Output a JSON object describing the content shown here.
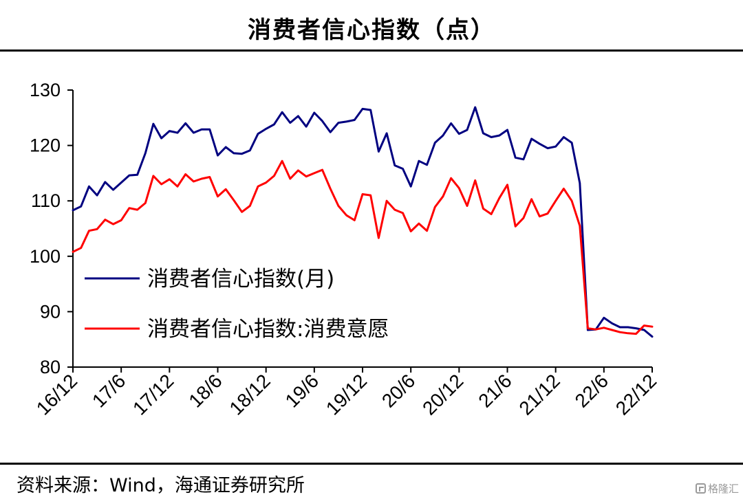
{
  "header": {
    "title": "消费者信心指数（点）"
  },
  "footer": {
    "source": "资料来源：Wind，海通证券研究所",
    "watermark": "格隆汇"
  },
  "chart_data": {
    "type": "line",
    "title": "消费者信心指数（点）",
    "xlabel": "",
    "ylabel": "",
    "ylim": [
      80,
      130
    ],
    "yticks": [
      80,
      90,
      100,
      110,
      120,
      130
    ],
    "xtick_labels": [
      "16/12",
      "17/6",
      "17/12",
      "18/6",
      "18/12",
      "19/6",
      "19/12",
      "20/6",
      "20/12",
      "21/6",
      "21/12",
      "22/6",
      "22/12"
    ],
    "x": [
      "16/12",
      "17/1",
      "17/2",
      "17/3",
      "17/4",
      "17/5",
      "17/6",
      "17/7",
      "17/8",
      "17/9",
      "17/10",
      "17/11",
      "17/12",
      "18/1",
      "18/2",
      "18/3",
      "18/4",
      "18/5",
      "18/6",
      "18/7",
      "18/8",
      "18/9",
      "18/10",
      "18/11",
      "18/12",
      "19/1",
      "19/2",
      "19/3",
      "19/4",
      "19/5",
      "19/6",
      "19/7",
      "19/8",
      "19/9",
      "19/10",
      "19/11",
      "19/12",
      "20/1",
      "20/2",
      "20/3",
      "20/4",
      "20/5",
      "20/6",
      "20/7",
      "20/8",
      "20/9",
      "20/10",
      "20/11",
      "20/12",
      "21/1",
      "21/2",
      "21/3",
      "21/4",
      "21/5",
      "21/6",
      "21/7",
      "21/8",
      "21/9",
      "21/10",
      "21/11",
      "21/12",
      "22/1",
      "22/2",
      "22/3",
      "22/4",
      "22/5",
      "22/6",
      "22/7",
      "22/8",
      "22/9",
      "22/10",
      "22/11",
      "22/12"
    ],
    "grid": false,
    "legend": "left-middle",
    "series": [
      {
        "name": "消费者信心指数(月)",
        "color": "#000080",
        "values": [
          108.3,
          109.0,
          112.6,
          111.0,
          113.4,
          112.0,
          113.3,
          114.6,
          114.7,
          118.6,
          123.9,
          121.3,
          122.6,
          122.3,
          124.0,
          122.3,
          122.9,
          122.9,
          118.2,
          119.7,
          118.6,
          118.5,
          119.1,
          122.1,
          123.0,
          123.8,
          126.0,
          124.1,
          125.3,
          123.4,
          125.9,
          124.4,
          122.4,
          124.1,
          124.3,
          124.6,
          126.6,
          126.4,
          118.9,
          122.2,
          116.4,
          115.8,
          112.6,
          117.2,
          116.5,
          120.5,
          121.8,
          124.0,
          122.1,
          122.8,
          126.9,
          122.2,
          121.5,
          121.8,
          122.8,
          117.8,
          117.5,
          121.2,
          120.3,
          119.5,
          119.8,
          121.5,
          120.5,
          113.2,
          86.7,
          86.8,
          88.9,
          87.9,
          87.2,
          87.2,
          87.0,
          86.7,
          85.5
        ]
      },
      {
        "name": "消费者信心指数:消费意愿",
        "color": "#ff0000",
        "values": [
          100.8,
          101.5,
          104.6,
          104.9,
          106.6,
          105.8,
          106.5,
          108.7,
          108.4,
          109.6,
          114.5,
          113.0,
          113.9,
          112.6,
          114.8,
          113.5,
          114.0,
          114.3,
          110.8,
          112.1,
          110.1,
          108.0,
          109.1,
          112.6,
          113.3,
          114.5,
          117.2,
          114.0,
          115.5,
          114.4,
          115.0,
          115.6,
          112.2,
          109.1,
          107.4,
          106.5,
          111.2,
          111.0,
          103.3,
          110.0,
          108.4,
          107.8,
          104.5,
          105.9,
          104.6,
          108.9,
          110.8,
          114.1,
          112.3,
          109.1,
          113.7,
          108.6,
          107.6,
          110.5,
          112.9,
          105.4,
          106.9,
          110.3,
          107.2,
          107.7,
          110.0,
          112.2,
          110.0,
          105.5,
          87.0,
          86.8,
          87.1,
          86.7,
          86.3,
          86.1,
          86.0,
          87.5,
          87.3
        ]
      }
    ]
  }
}
